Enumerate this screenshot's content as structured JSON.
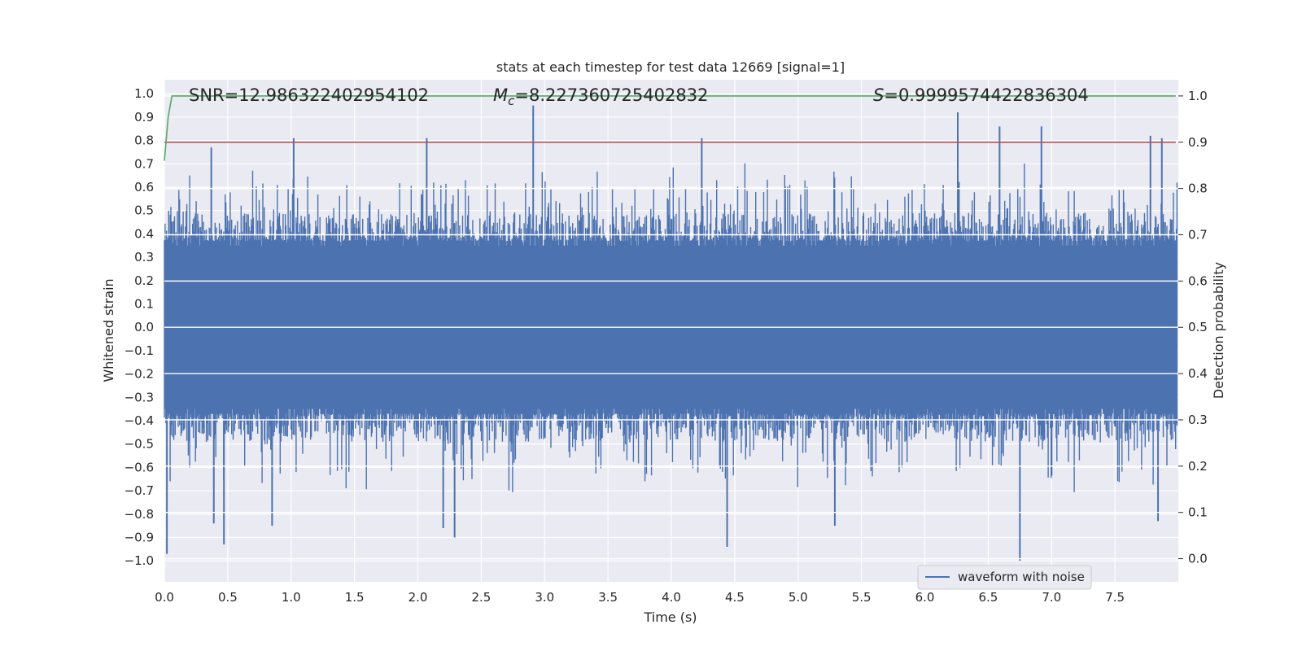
{
  "chart_data": {
    "type": "line",
    "title": "stats at each timestep for test data 12669 [signal=1]",
    "xlabel": "Time (s)",
    "ylabel": "Whitened strain",
    "ylabel_right": "Detection probability",
    "xlim": [
      0.0,
      8.0
    ],
    "ylim": [
      -1.09,
      1.06
    ],
    "ylim_right": [
      -0.05,
      1.035
    ],
    "x_ticks": [
      "0.0",
      "0.5",
      "1.0",
      "1.5",
      "2.0",
      "2.5",
      "3.0",
      "3.5",
      "4.0",
      "4.5",
      "5.0",
      "5.5",
      "6.0",
      "6.5",
      "7.0",
      "7.5"
    ],
    "y_ticks": [
      "1.0",
      "0.9",
      "0.8",
      "0.7",
      "0.6",
      "0.5",
      "0.4",
      "0.3",
      "0.2",
      "0.1",
      "0.0",
      "−0.1",
      "−0.2",
      "−0.3",
      "−0.4",
      "−0.5",
      "−0.6",
      "−0.7",
      "−0.8",
      "−0.9",
      "−1.0"
    ],
    "y_right_ticks": [
      "1.0",
      "0.9",
      "0.8",
      "0.7",
      "0.6",
      "0.5",
      "0.4",
      "0.3",
      "0.2",
      "0.1",
      "0.0"
    ],
    "annotations": {
      "snr": "SNR=12.986322402954102",
      "mc_symbol": "M",
      "mc_sub": "c",
      "mc_value": "=8.227360725402832",
      "s_symbol": "S",
      "s_value": "=0.9999574422836304"
    },
    "series": [
      {
        "name": "waveform with noise",
        "color": "#4c72b0",
        "kind": "dense-noise",
        "x_range": [
          0.0,
          7.99
        ],
        "typical_band": [
          -0.43,
          0.43
        ],
        "max": 0.95,
        "min": -1.0,
        "notable_peaks": [
          [
            0.37,
            0.77
          ],
          [
            1.02,
            0.81
          ],
          [
            2.07,
            0.81
          ],
          [
            2.91,
            0.95
          ],
          [
            4.24,
            0.81
          ],
          [
            6.26,
            0.92
          ],
          [
            6.59,
            0.86
          ],
          [
            6.92,
            0.86
          ],
          [
            7.78,
            0.82
          ],
          [
            7.87,
            0.81
          ]
        ],
        "notable_troughs": [
          [
            0.02,
            -0.97
          ],
          [
            0.39,
            -0.84
          ],
          [
            0.47,
            -0.93
          ],
          [
            0.85,
            -0.85
          ],
          [
            2.2,
            -0.86
          ],
          [
            2.29,
            -0.9
          ],
          [
            4.44,
            -0.94
          ],
          [
            5.29,
            -0.85
          ],
          [
            6.75,
            -1.0
          ],
          [
            7.84,
            -0.83
          ]
        ]
      },
      {
        "color": "#55a868",
        "axis": "right",
        "x": [
          0.0,
          0.03,
          0.06,
          7.98
        ],
        "y": [
          0.86,
          0.955,
          1.0,
          1.0
        ]
      },
      {
        "color": "#c44e52",
        "axis": "right",
        "kind": "threshold",
        "x": [
          0.0,
          7.98
        ],
        "y": [
          0.9,
          0.9
        ]
      }
    ],
    "legend": {
      "position": "lower-right",
      "entries": [
        "waveform with noise"
      ]
    },
    "grid": true,
    "colors": {
      "background": "#eaeaf2",
      "grid": "#ffffff",
      "waveform": "#4c72b0",
      "probability": "#55a868",
      "threshold": "#c44e52"
    }
  }
}
